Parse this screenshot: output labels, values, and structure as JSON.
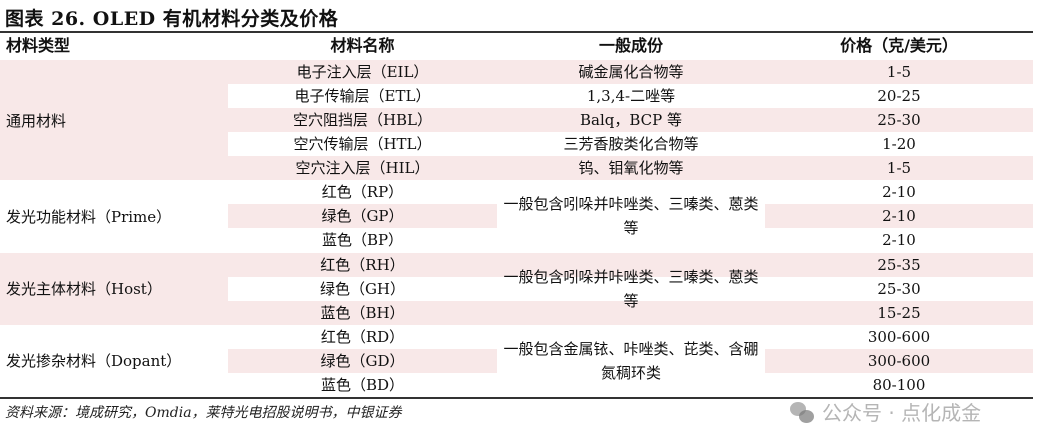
{
  "title": "图表 26. OLED 有机材料分类及价格",
  "headers": [
    "材料类型",
    "材料名称",
    "一般成份",
    "价格（克/美元）"
  ],
  "rows": [
    {
      "name": "电子注入层（EIL）",
      "price": "1-5"
    },
    {
      "name": "电子传输层（ETL）",
      "price": "20-25"
    },
    {
      "name": "空穴阻挡层（HBL）",
      "price": "25-30"
    },
    {
      "name": "空穴传输层（HTL）",
      "price": "1-20"
    },
    {
      "name": "空穴注入层（HIL）",
      "price": "1-5"
    },
    {
      "name": "红色（RP）",
      "price": "2-10"
    },
    {
      "name": "绿色（GP）",
      "price": "2-10"
    },
    {
      "name": "蓝色（BP）",
      "price": "2-10"
    },
    {
      "name": "红色（RH）",
      "price": "25-35"
    },
    {
      "name": "绿色（GH）",
      "price": "25-30"
    },
    {
      "name": "蓝色（BH）",
      "price": "15-25"
    },
    {
      "name": "红色（RD）",
      "price": "300-600"
    },
    {
      "name": "绿色（GD）",
      "price": "300-600"
    },
    {
      "name": "蓝色（BD）",
      "price": "80-100"
    }
  ],
  "general_components": {
    "eil": "碱金属化合物等",
    "etl": "1,3,4-二唑等",
    "hbl": "Balq，BCP 等",
    "htl": "三芳香胺类化合物等",
    "hil": "钨、钼氧化物等",
    "prime": "一般包含吲哚并咔唑类、三嗪类、蒽类等",
    "host": "一般包含吲哚并咔唑类、三嗪类、蒽类等",
    "dopant": "一般包含金属铱、咔唑类、芘类、含硼氮稠环类"
  },
  "groups": {
    "general": "通用材料",
    "prime": "发光功能材料（Prime）",
    "host": "发光主体材料（Host）",
    "dopant": "发光掺杂材料（Dopant）"
  },
  "source": "资料来源：境成研究，Omdia，莱特光电招股说明书，中银证券",
  "watermark": "公众号 · 点化成金",
  "colors": {
    "stripe": "#f8e8e8",
    "rule": "#333333"
  }
}
